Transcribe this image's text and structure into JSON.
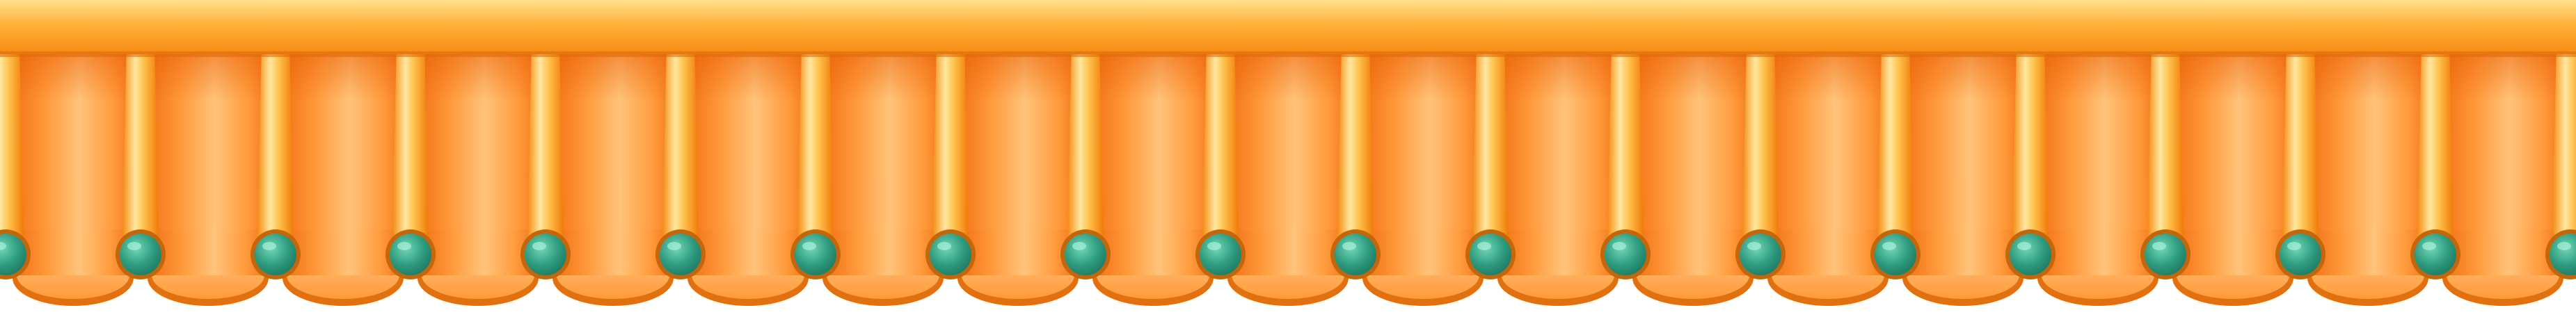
{
  "scene": {
    "name": "awning-valance",
    "panel_count": 19,
    "colors": {
      "top_rail_light": "#FFD76A",
      "top_rail_mid": "#FFB23A",
      "top_rail_dark": "#F08A12",
      "panel_outer": "#F06E10",
      "panel_center": "#FFC880",
      "panel_shadow": "#E8640A",
      "scallop_fill": "#FFB060",
      "scallop_rim": "#E07010",
      "pole_light": "#FFE7A0",
      "pole_dark": "#F38A10",
      "knob_teal": "#2E9A7E",
      "knob_teal_light": "#5FC8A8",
      "knob_rim": "#C4660C"
    }
  }
}
